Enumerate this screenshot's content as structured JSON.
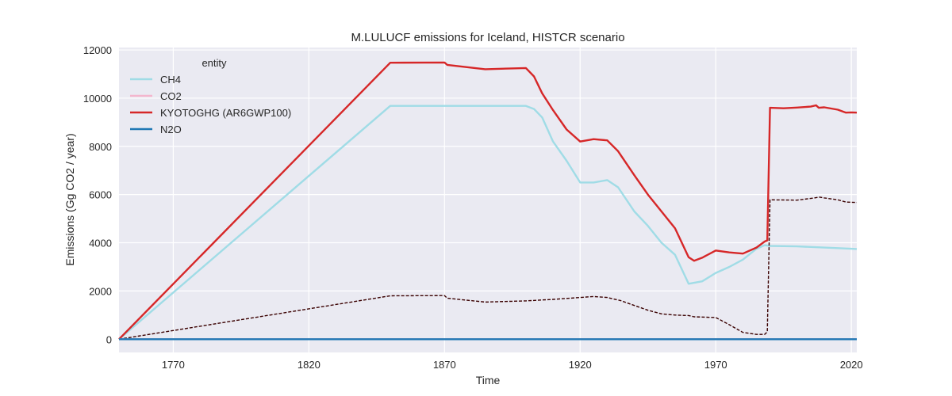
{
  "chart_data": {
    "type": "line",
    "title": "M.LULUCF emissions for Iceland, HISTCR scenario",
    "xlabel": "Time",
    "ylabel": "Emissions (Gg CO2 / year)",
    "xlim": [
      1750,
      2022
    ],
    "ylim": [
      -550,
      12100
    ],
    "xticks": [
      1770,
      1820,
      1870,
      1920,
      1970,
      2020
    ],
    "yticks": [
      0,
      2000,
      4000,
      6000,
      8000,
      10000,
      12000
    ],
    "grid": true,
    "legend": {
      "title": "entity",
      "placement": "top-left"
    },
    "series": [
      {
        "name": "CH4",
        "color": "#a0dce6",
        "style": "solid",
        "points": [
          [
            1750,
            0
          ],
          [
            1850,
            9680
          ],
          [
            1900,
            9680
          ],
          [
            1903,
            9550
          ],
          [
            1906,
            9200
          ],
          [
            1910,
            8200
          ],
          [
            1915,
            7400
          ],
          [
            1920,
            6500
          ],
          [
            1925,
            6500
          ],
          [
            1930,
            6600
          ],
          [
            1934,
            6300
          ],
          [
            1940,
            5300
          ],
          [
            1945,
            4700
          ],
          [
            1950,
            4000
          ],
          [
            1955,
            3500
          ],
          [
            1960,
            2300
          ],
          [
            1965,
            2400
          ],
          [
            1970,
            2750
          ],
          [
            1975,
            3000
          ],
          [
            1980,
            3300
          ],
          [
            1985,
            3750
          ],
          [
            1988,
            3900
          ],
          [
            1990,
            3870
          ],
          [
            2000,
            3850
          ],
          [
            2010,
            3800
          ],
          [
            2020,
            3750
          ],
          [
            2022,
            3740
          ]
        ]
      },
      {
        "name": "CO2",
        "color": "#f4b6cd",
        "style": "solid",
        "points": [
          [
            1750,
            0
          ],
          [
            2022,
            0
          ]
        ]
      },
      {
        "name": "KYOTOGHG (AR6GWP100)",
        "color": "#d62728",
        "style": "solid",
        "points": [
          [
            1750,
            0
          ],
          [
            1850,
            11470
          ],
          [
            1870,
            11480
          ],
          [
            1871,
            11380
          ],
          [
            1885,
            11200
          ],
          [
            1900,
            11250
          ],
          [
            1903,
            10900
          ],
          [
            1906,
            10200
          ],
          [
            1910,
            9500
          ],
          [
            1915,
            8700
          ],
          [
            1920,
            8200
          ],
          [
            1925,
            8300
          ],
          [
            1930,
            8250
          ],
          [
            1934,
            7800
          ],
          [
            1940,
            6800
          ],
          [
            1945,
            6000
          ],
          [
            1950,
            5300
          ],
          [
            1955,
            4600
          ],
          [
            1960,
            3400
          ],
          [
            1962,
            3250
          ],
          [
            1965,
            3380
          ],
          [
            1970,
            3680
          ],
          [
            1975,
            3600
          ],
          [
            1980,
            3550
          ],
          [
            1985,
            3800
          ],
          [
            1988,
            4050
          ],
          [
            1989,
            4100
          ],
          [
            1990,
            9600
          ],
          [
            1995,
            9580
          ],
          [
            2000,
            9610
          ],
          [
            2005,
            9650
          ],
          [
            2007,
            9700
          ],
          [
            2008,
            9600
          ],
          [
            2010,
            9620
          ],
          [
            2015,
            9520
          ],
          [
            2018,
            9400
          ],
          [
            2020,
            9410
          ],
          [
            2022,
            9400
          ]
        ]
      },
      {
        "name": "N2O",
        "color": "#1f77b4",
        "style": "solid",
        "points": [
          [
            1750,
            0
          ],
          [
            2022,
            0
          ]
        ]
      },
      {
        "name": "",
        "color": "#3a0000",
        "style": "dashed",
        "points": [
          [
            1750,
            0
          ],
          [
            1850,
            1800
          ],
          [
            1870,
            1810
          ],
          [
            1871,
            1700
          ],
          [
            1885,
            1540
          ],
          [
            1900,
            1590
          ],
          [
            1910,
            1650
          ],
          [
            1925,
            1770
          ],
          [
            1930,
            1730
          ],
          [
            1935,
            1600
          ],
          [
            1940,
            1400
          ],
          [
            1945,
            1200
          ],
          [
            1950,
            1050
          ],
          [
            1955,
            1000
          ],
          [
            1960,
            980
          ],
          [
            1962,
            930
          ],
          [
            1970,
            900
          ],
          [
            1975,
            600
          ],
          [
            1980,
            280
          ],
          [
            1985,
            200
          ],
          [
            1988,
            200
          ],
          [
            1989,
            300
          ],
          [
            1990,
            5780
          ],
          [
            2000,
            5770
          ],
          [
            2007,
            5870
          ],
          [
            2008,
            5900
          ],
          [
            2010,
            5860
          ],
          [
            2015,
            5780
          ],
          [
            2018,
            5690
          ],
          [
            2022,
            5670
          ]
        ]
      }
    ]
  }
}
